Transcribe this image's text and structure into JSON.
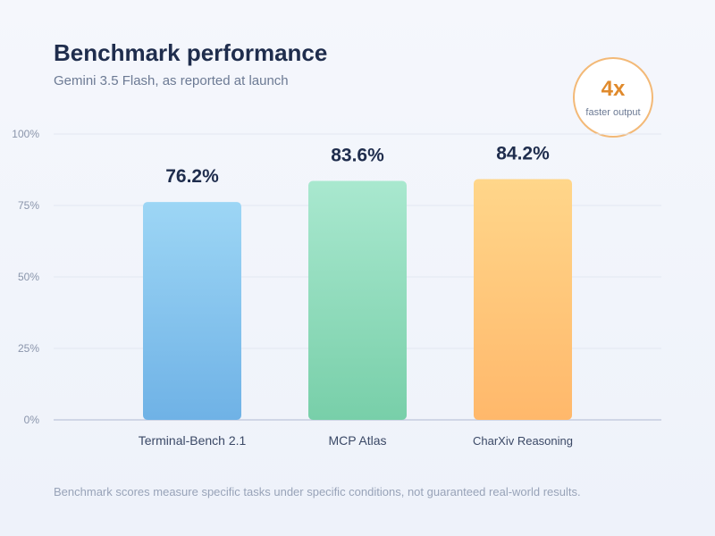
{
  "header": {
    "title": "Benchmark performance",
    "subtitle": "Gemini 3.5 Flash, as reported at launch"
  },
  "badge": {
    "value": "4x",
    "caption": "faster output",
    "color": "#e08a2c"
  },
  "footnote": "Benchmark scores measure specific tasks under specific conditions, not guaranteed real-world results.",
  "chart_data": {
    "type": "bar",
    "categories": [
      "Terminal-Bench 2.1",
      "MCP Atlas",
      "CharXiv Reasoning"
    ],
    "values": [
      76.2,
      83.6,
      84.2
    ],
    "value_labels": [
      "76.2%",
      "83.6%",
      "84.2%"
    ],
    "ylim": [
      0,
      100
    ],
    "yticks": [
      0,
      25,
      50,
      75,
      100
    ],
    "ytick_labels": [
      "0%",
      "25%",
      "50%",
      "75%",
      "100%"
    ],
    "grid": true,
    "colors": [
      [
        "#9dd6f5",
        "#6fb2e6"
      ],
      [
        "#a9e8cf",
        "#78cfa9"
      ],
      [
        "#ffd68a",
        "#ffb86b"
      ]
    ]
  }
}
